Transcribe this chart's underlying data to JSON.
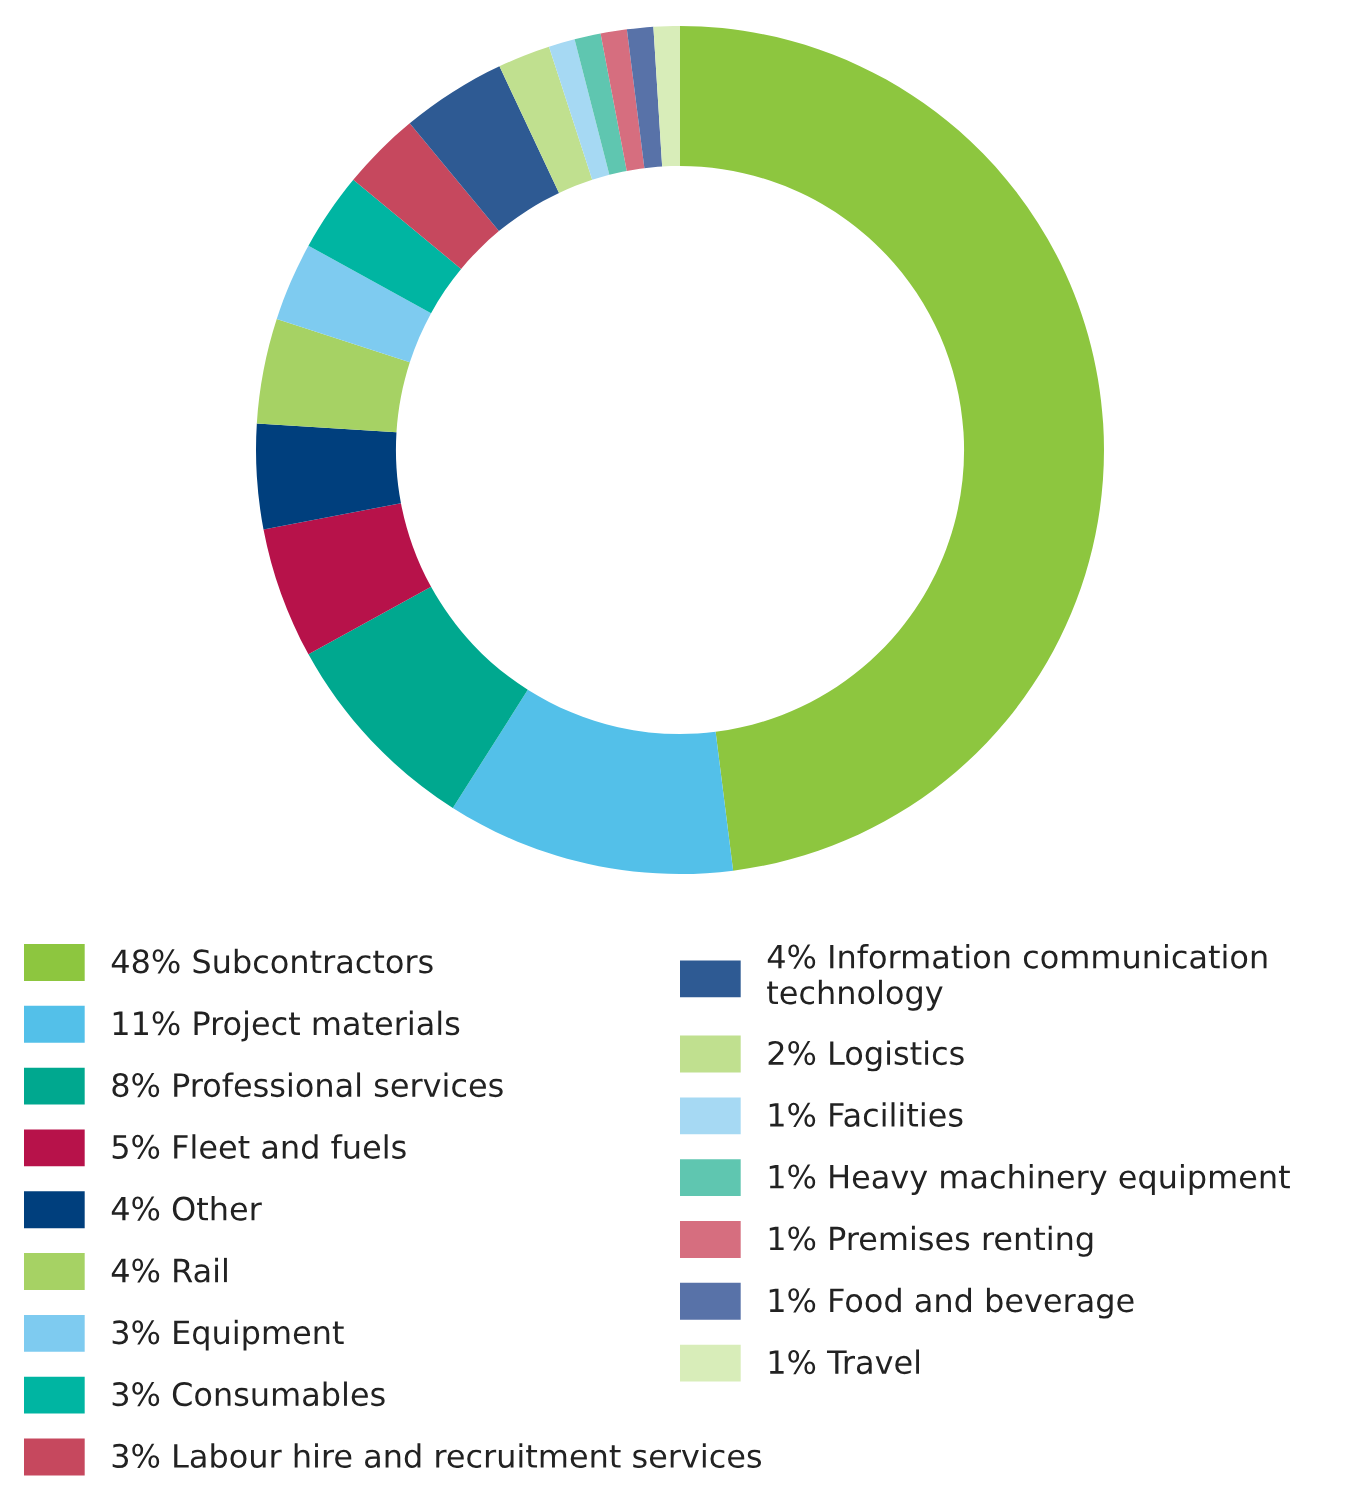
{
  "chart_data": {
    "type": "donut",
    "categories": [
      "Subcontractors",
      "Project materials",
      "Professional services",
      "Fleet and fuels",
      "Other",
      "Rail",
      "Equipment",
      "Consumables",
      "Labour hire and recruitment services",
      "Information communication technology",
      "Logistics",
      "Facilities",
      "Heavy machinery equipment",
      "Premises renting",
      "Food and beverage",
      "Travel"
    ],
    "values": [
      48,
      11,
      8,
      5,
      4,
      4,
      3,
      3,
      3,
      4,
      2,
      1,
      1,
      1,
      1,
      1
    ],
    "value_labels": [
      "48%",
      "11%",
      "8%",
      "5%",
      "4%",
      "4%",
      "3%",
      "3%",
      "3%",
      "4%",
      "2%",
      "1%",
      "1%",
      "1%",
      "1%",
      "1%"
    ],
    "colors": [
      "#8dc63f",
      "#53c0e9",
      "#00a88f",
      "#b7124a",
      "#003f7d",
      "#a6d264",
      "#7ecbf0",
      "#00b5a2",
      "#c6485e",
      "#2e5a93",
      "#c0e08f",
      "#a6d9f3",
      "#5fc6b0",
      "#d66e7f",
      "#5872a8",
      "#d8edb9"
    ],
    "legend": "bottom"
  }
}
